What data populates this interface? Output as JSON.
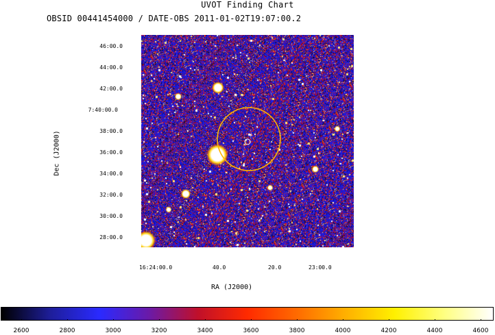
{
  "title": "UVOT Finding Chart",
  "subtitle": "OBSID 00441454000 / DATE-OBS 2011-01-02T19:07:00.2",
  "axes": {
    "xlabel": "RA (J2000)",
    "ylabel": "Dec (J2000)",
    "ra_ticks": [
      "16:24:00.0",
      "40.0",
      "20.0",
      "23:00.0"
    ],
    "dec_ticks": [
      "46:00.0",
      "44:00.0",
      "42:00.0",
      "7:40:00.0",
      "38:00.0",
      "36:00.0",
      "34:00.0",
      "32:00.0",
      "30:00.0",
      "28:00.0"
    ]
  },
  "colorbar": {
    "ticks": [
      "2600",
      "2800",
      "3000",
      "3200",
      "3400",
      "3600",
      "3800",
      "4000",
      "4200",
      "4400",
      "4600"
    ],
    "colormap": [
      "#000000",
      "#1e1e9a",
      "#2a2aff",
      "#6a1aa8",
      "#c0102a",
      "#ff2a00",
      "#ff6a00",
      "#ffb000",
      "#fff000",
      "#ffff80",
      "#ffffff"
    ]
  },
  "image": {
    "background_color": "#1a1ad8",
    "circle_color": "#ffb400"
  }
}
